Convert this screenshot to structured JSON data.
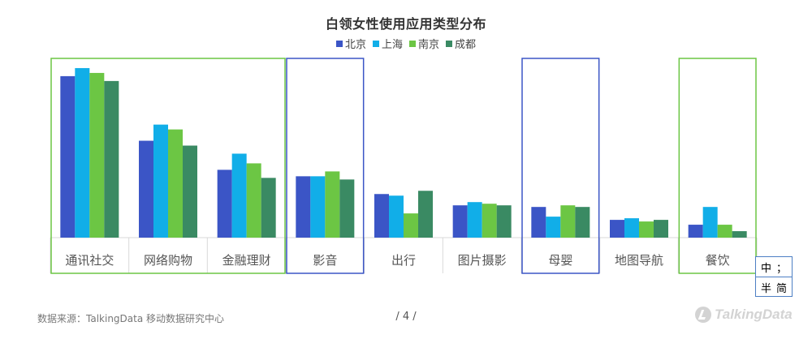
{
  "chart_data": {
    "type": "bar",
    "title": "白领女性使用应用类型分布",
    "categories": [
      "通讯社交",
      "网络购物",
      "金融理财",
      "影音",
      "出行",
      "图片摄影",
      "母婴",
      "地图导航",
      "餐饮"
    ],
    "series": [
      {
        "name": "北京",
        "color": "#3b55c6",
        "values": [
          100,
          60,
          42,
          38,
          27,
          20,
          19,
          11,
          8
        ]
      },
      {
        "name": "上海",
        "color": "#11aee8",
        "values": [
          105,
          70,
          52,
          38,
          26,
          22,
          13,
          12,
          19
        ]
      },
      {
        "name": "南京",
        "color": "#6cc644",
        "values": [
          102,
          67,
          46,
          41,
          15,
          21,
          20,
          10,
          8
        ]
      },
      {
        "name": "成都",
        "color": "#3a8a63",
        "values": [
          97,
          57,
          37,
          36,
          29,
          20,
          19,
          11,
          4
        ]
      }
    ],
    "ylim": [
      0,
      110
    ],
    "grid": false,
    "legend": "top-center",
    "highlight_groups": [
      {
        "color": "#6cc644",
        "categories": [
          "通讯社交",
          "网络购物",
          "金融理财"
        ]
      },
      {
        "color": "#3b55c6",
        "categories": [
          "影音"
        ]
      },
      {
        "color": "#3b55c6",
        "categories": [
          "母婴"
        ]
      },
      {
        "color": "#6cc644",
        "categories": [
          "餐饮"
        ]
      }
    ]
  },
  "ime": {
    "row1": [
      "中",
      "；"
    ],
    "row2": [
      "半",
      "简"
    ]
  },
  "footer": {
    "source": "数据来源：TalkingData 移动数据研究中心",
    "page": "/  4  /"
  },
  "logo": {
    "text": "TalkingData"
  }
}
